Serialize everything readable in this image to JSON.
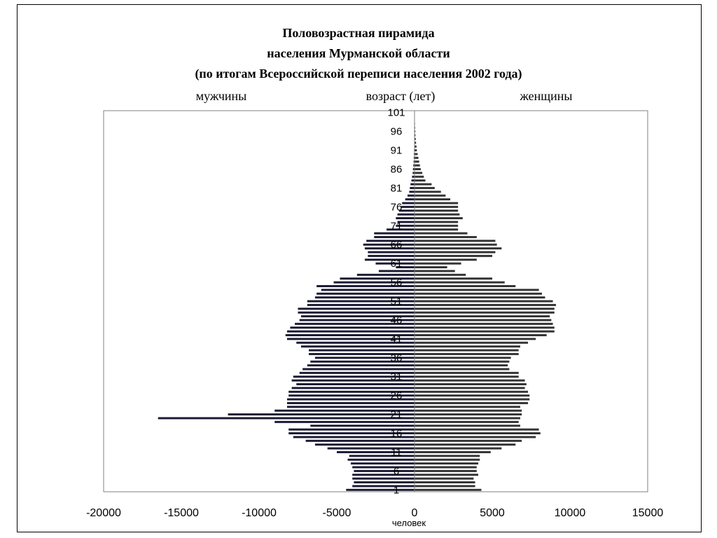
{
  "title": {
    "line1": "Половозрастная пирамида",
    "line2": "населения Мурманской области",
    "line3": "(по итогам Всероссийской переписи населения 2002 года)"
  },
  "labels": {
    "men": "мужчины",
    "age": "возраст (лет)",
    "women": "женщины",
    "unit": "человек"
  },
  "chart_data": {
    "type": "bar",
    "orientation": "horizontal",
    "title": "Половозрастная пирамида населения Мурманской области (по итогам Всероссийской переписи населения 2002 года)",
    "xlabel": "человек",
    "ylabel": "возраст (лет)",
    "xlim": [
      -20000,
      15000
    ],
    "xticks": [
      -20000,
      -15000,
      -10000,
      -5000,
      0,
      5000,
      10000,
      15000
    ],
    "xtick_labels": [
      "-20000",
      "-15000",
      "-10000",
      "-5000",
      "0",
      "5000",
      "10000",
      "15000"
    ],
    "age_tick_labels": [
      "101",
      "96",
      "91",
      "86",
      "81",
      "76",
      "71",
      "66",
      "61",
      "56",
      "51",
      "46",
      "41",
      "36",
      "31",
      "26",
      "21",
      "16",
      "11",
      "6",
      "1"
    ],
    "ages_from": 1,
    "ages_to": 101,
    "series": [
      {
        "name": "мужчины",
        "color": "#1a1a33",
        "values": [
          4400,
          4000,
          3900,
          4000,
          4000,
          3900,
          4000,
          4100,
          4300,
          4200,
          5000,
          5600,
          6400,
          7000,
          7800,
          8100,
          8100,
          6700,
          9000,
          16500,
          12000,
          9000,
          8200,
          8200,
          8200,
          8100,
          8100,
          7900,
          7600,
          7900,
          7800,
          7400,
          7200,
          6900,
          6700,
          6400,
          6800,
          6800,
          7300,
          7600,
          8200,
          8300,
          8200,
          8000,
          7700,
          7400,
          7300,
          7500,
          7500,
          6900,
          6900,
          6400,
          6300,
          6000,
          6300,
          5200,
          4800,
          3700,
          2300,
          1200,
          2500,
          3200,
          3000,
          3000,
          3200,
          3300,
          3100,
          2600,
          2600,
          1800,
          1200,
          1100,
          1200,
          1100,
          1000,
          850,
          800,
          600,
          450,
          340,
          300,
          260,
          200,
          160,
          120,
          100,
          80,
          60,
          50,
          40,
          30,
          25,
          20,
          15,
          12,
          10,
          8,
          6,
          4,
          3,
          2
        ]
      },
      {
        "name": "женщины",
        "color": "#333333",
        "values": [
          4300,
          3900,
          3900,
          3800,
          4100,
          4000,
          4000,
          4100,
          4200,
          4200,
          4900,
          5600,
          6500,
          6900,
          7800,
          8100,
          8000,
          6800,
          6700,
          6800,
          6900,
          6900,
          6800,
          7300,
          7400,
          7400,
          7300,
          7100,
          7200,
          7100,
          6700,
          6700,
          6100,
          6000,
          6100,
          6200,
          6700,
          6700,
          6800,
          7300,
          7800,
          8500,
          9000,
          9000,
          8900,
          8800,
          8700,
          9000,
          9000,
          9100,
          8900,
          8400,
          8200,
          8000,
          6500,
          5800,
          5000,
          3300,
          2600,
          2100,
          3000,
          4000,
          5000,
          5200,
          5600,
          5300,
          5200,
          4000,
          3400,
          2800,
          2800,
          2800,
          3100,
          2900,
          2800,
          2800,
          2800,
          2300,
          2000,
          1700,
          1300,
          1100,
          700,
          600,
          500,
          400,
          350,
          300,
          250,
          200,
          150,
          130,
          100,
          80,
          60,
          50,
          40,
          30,
          20,
          10,
          5
        ]
      }
    ],
    "grid": false,
    "legend": "none"
  }
}
